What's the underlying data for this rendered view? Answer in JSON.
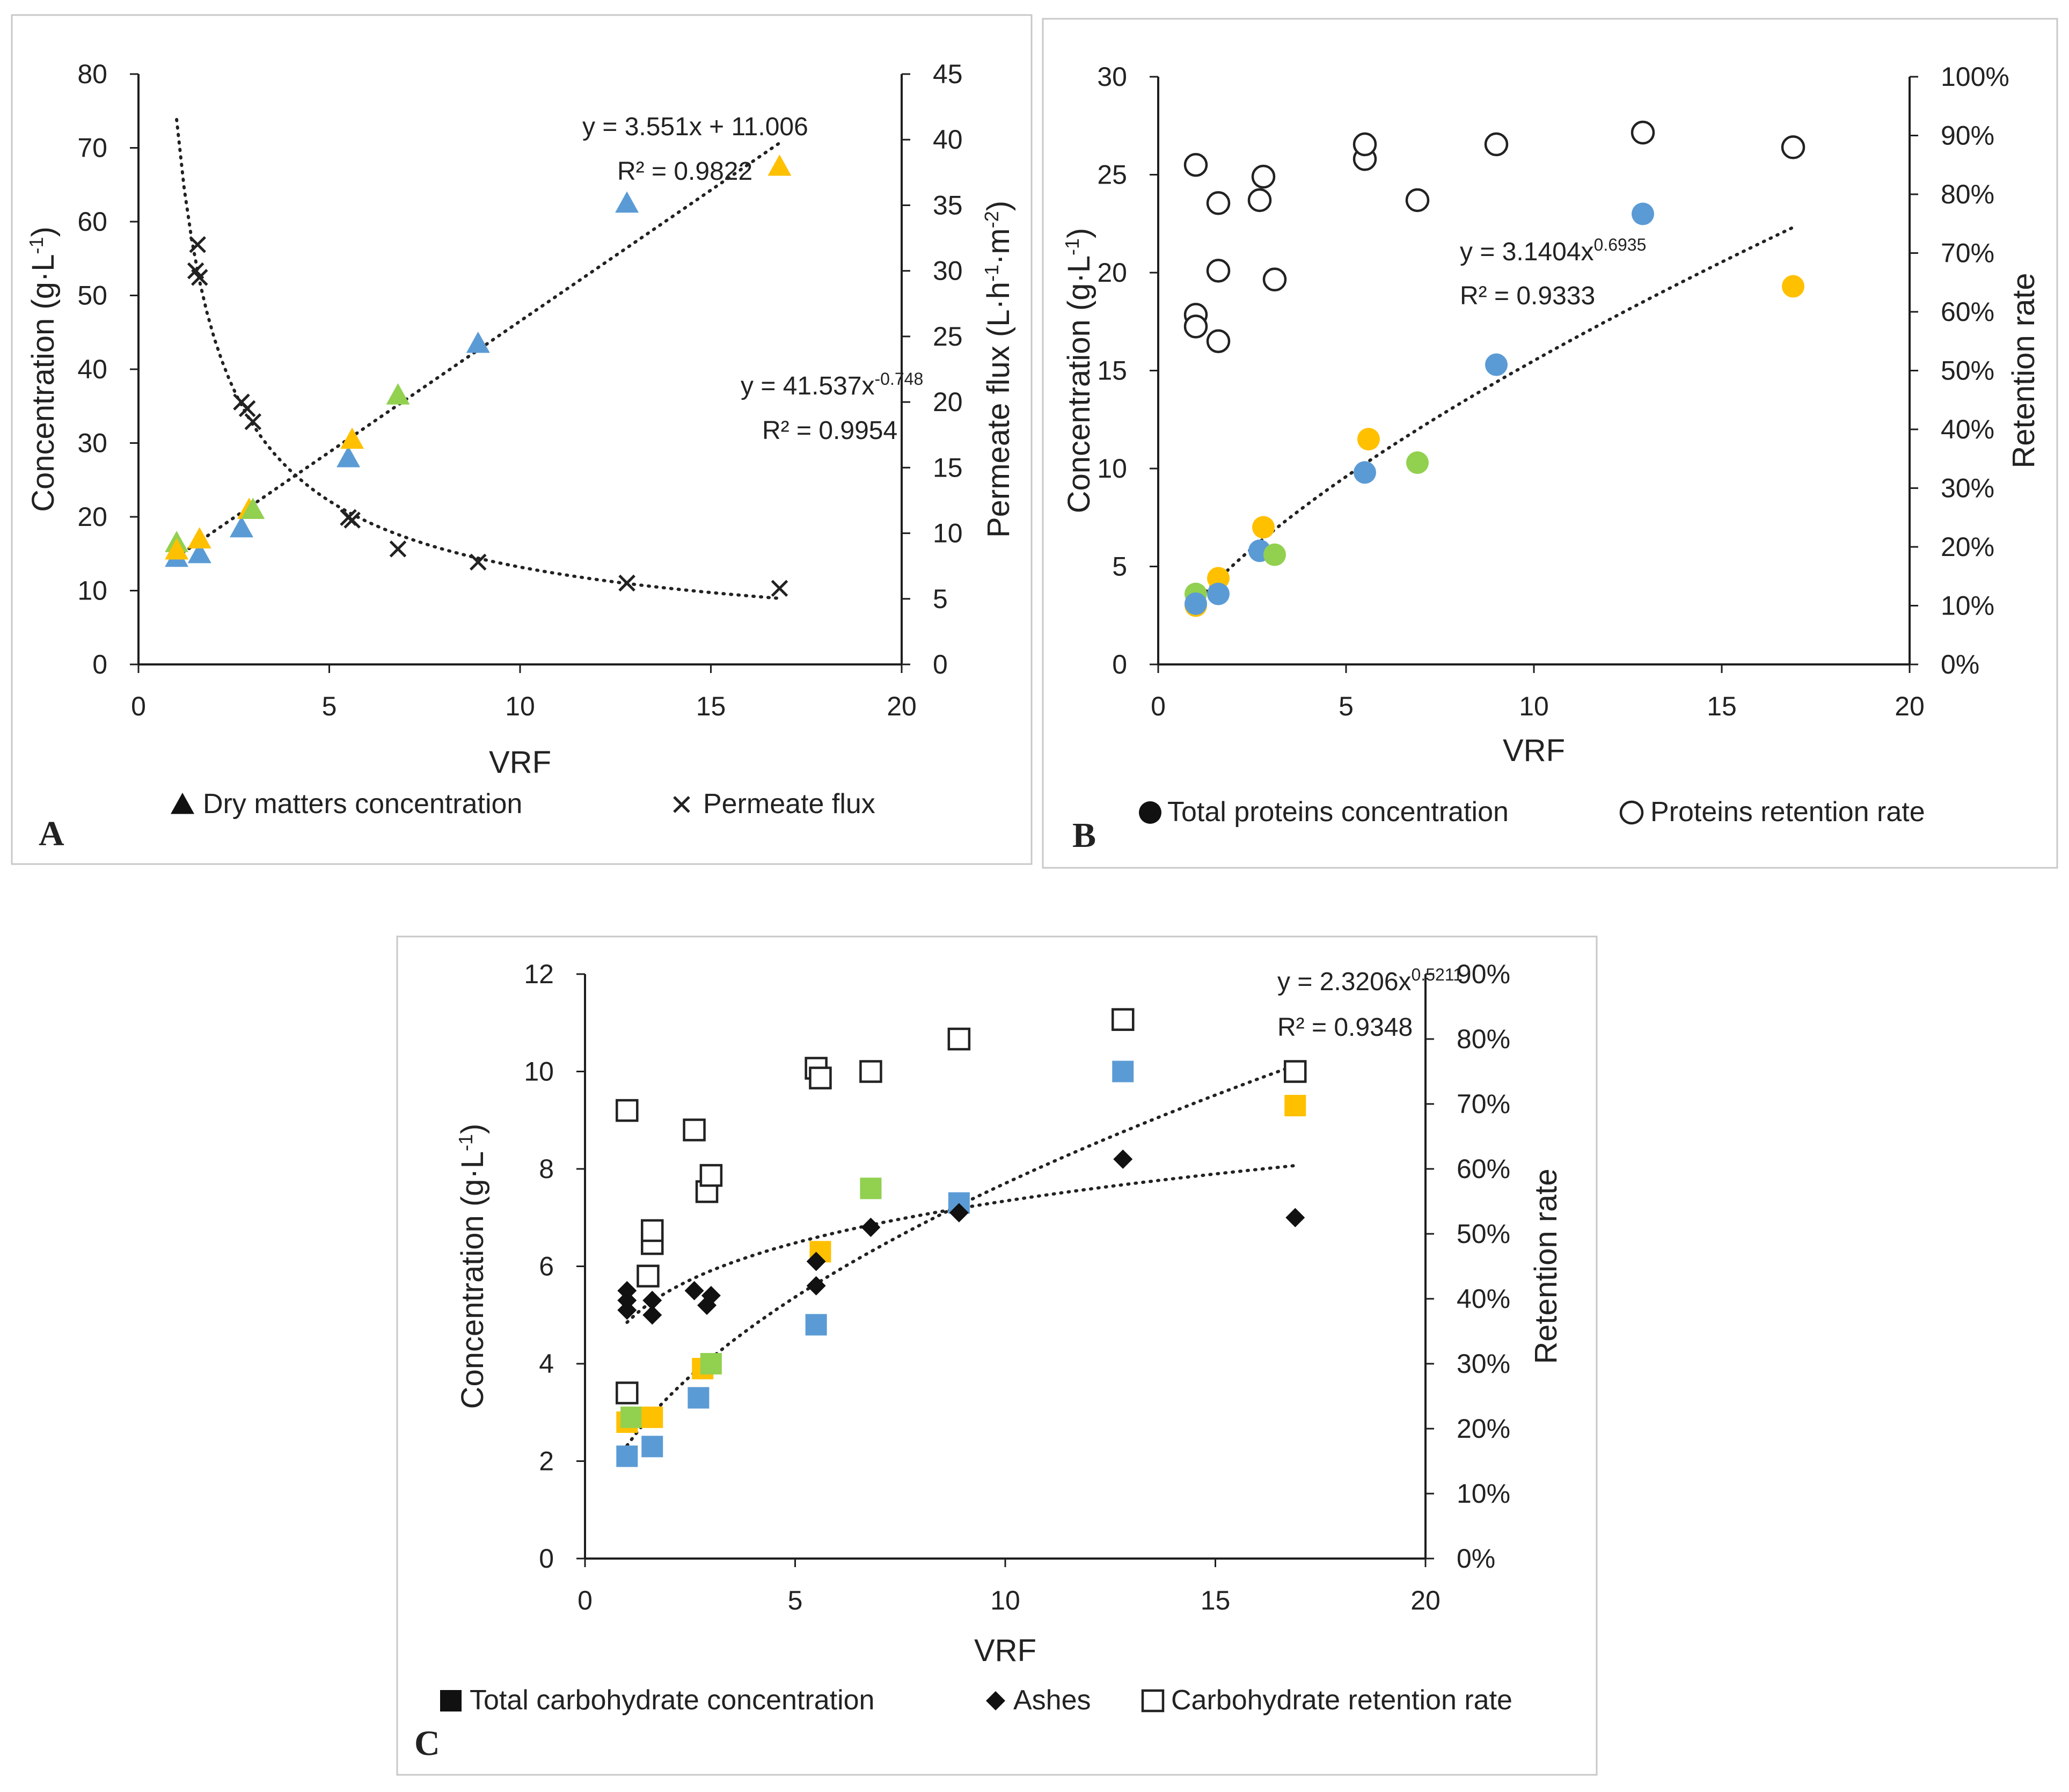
{
  "colors": {
    "blue": "#5b9bd5",
    "yellow": "#ffc000",
    "green": "#92d050",
    "black": "#111111"
  },
  "chart_data": [
    {
      "panel": "A",
      "type": "scatter",
      "xlabel": "VRF",
      "xlim": [
        0,
        20
      ],
      "xticks": [
        0,
        5,
        10,
        15,
        20
      ],
      "ylabel": "Concentration (g·L-1)",
      "ylim": [
        0,
        80
      ],
      "yticks": [
        0,
        10,
        20,
        30,
        40,
        50,
        60,
        70,
        80
      ],
      "y2label": "Permeate flux (L·h-1·m-2)",
      "y2lim": [
        0,
        45
      ],
      "y2ticks": [
        0,
        5,
        10,
        15,
        20,
        25,
        30,
        35,
        40,
        45
      ],
      "series": [
        {
          "name": "Dry matters concentration",
          "axis": "left",
          "marker": "triangle",
          "points": [
            {
              "x": 1.0,
              "y": 14.5,
              "c": "blue"
            },
            {
              "x": 1.0,
              "y": 16.5,
              "c": "green"
            },
            {
              "x": 1.0,
              "y": 15.5,
              "c": "yellow"
            },
            {
              "x": 1.6,
              "y": 15.0,
              "c": "blue"
            },
            {
              "x": 1.6,
              "y": 17.0,
              "c": "yellow"
            },
            {
              "x": 2.7,
              "y": 18.5,
              "c": "blue"
            },
            {
              "x": 2.9,
              "y": 21.0,
              "c": "yellow"
            },
            {
              "x": 3.0,
              "y": 21.0,
              "c": "green"
            },
            {
              "x": 5.5,
              "y": 28.0,
              "c": "blue"
            },
            {
              "x": 5.6,
              "y": 30.5,
              "c": "yellow"
            },
            {
              "x": 6.8,
              "y": 36.5,
              "c": "green"
            },
            {
              "x": 8.9,
              "y": 43.5,
              "c": "blue"
            },
            {
              "x": 12.8,
              "y": 62.5,
              "c": "blue"
            },
            {
              "x": 16.8,
              "y": 67.5,
              "c": "yellow"
            }
          ]
        },
        {
          "name": "Permeate flux",
          "axis": "right",
          "marker": "x",
          "points": [
            {
              "x": 1.55,
              "y": 32.0
            },
            {
              "x": 1.5,
              "y": 30.0
            },
            {
              "x": 1.6,
              "y": 29.5
            },
            {
              "x": 2.7,
              "y": 20.0
            },
            {
              "x": 2.85,
              "y": 19.5
            },
            {
              "x": 3.0,
              "y": 18.5
            },
            {
              "x": 5.5,
              "y": 11.2
            },
            {
              "x": 5.6,
              "y": 11.0
            },
            {
              "x": 6.8,
              "y": 8.8
            },
            {
              "x": 8.9,
              "y": 7.8
            },
            {
              "x": 12.8,
              "y": 6.2
            },
            {
              "x": 16.8,
              "y": 5.8
            }
          ]
        }
      ],
      "trendlines": [
        {
          "kind": "linear",
          "axis": "left",
          "a": 3.551,
          "b": 11.006,
          "x0": 1.0,
          "x1": 16.8
        },
        {
          "kind": "power",
          "axis": "right",
          "a": 41.537,
          "b": -0.748,
          "x0": 1.0,
          "x1": 16.8
        }
      ],
      "equations": [
        {
          "line1": "y = 3.551x + 11.006",
          "r2": "R² = 0.9822"
        },
        {
          "base": "y = 41.537x",
          "exp": "-0.748",
          "r2": "R² = 0.9954"
        }
      ],
      "legend": [
        {
          "marker": "triangle",
          "label": "Dry matters concentration"
        },
        {
          "marker": "x",
          "label": "Permeate flux"
        }
      ]
    },
    {
      "panel": "B",
      "type": "scatter",
      "xlabel": "VRF",
      "xlim": [
        0,
        20
      ],
      "xticks": [
        0,
        5,
        10,
        15,
        20
      ],
      "ylabel": "Concentration (g·L-1)",
      "ylim": [
        0,
        30
      ],
      "yticks": [
        0,
        5,
        10,
        15,
        20,
        25,
        30
      ],
      "y2label": "Retention rate",
      "y2lim": [
        0,
        100
      ],
      "y2ticks": [
        "0%",
        "10%",
        "20%",
        "30%",
        "40%",
        "50%",
        "60%",
        "70%",
        "80%",
        "90%",
        "100%"
      ],
      "series": [
        {
          "name": "Total proteins concentration",
          "axis": "left",
          "marker": "circle",
          "points": [
            {
              "x": 1.0,
              "y": 3.0,
              "c": "yellow"
            },
            {
              "x": 1.0,
              "y": 3.6,
              "c": "green"
            },
            {
              "x": 1.0,
              "y": 3.1,
              "c": "blue"
            },
            {
              "x": 1.6,
              "y": 4.4,
              "c": "yellow"
            },
            {
              "x": 1.6,
              "y": 3.6,
              "c": "blue"
            },
            {
              "x": 2.7,
              "y": 5.8,
              "c": "blue"
            },
            {
              "x": 2.8,
              "y": 7.0,
              "c": "yellow"
            },
            {
              "x": 3.1,
              "y": 5.6,
              "c": "green"
            },
            {
              "x": 5.5,
              "y": 9.8,
              "c": "blue"
            },
            {
              "x": 5.6,
              "y": 11.5,
              "c": "yellow"
            },
            {
              "x": 6.9,
              "y": 10.3,
              "c": "green"
            },
            {
              "x": 9.0,
              "y": 15.3,
              "c": "blue"
            },
            {
              "x": 12.9,
              "y": 23.0,
              "c": "blue"
            },
            {
              "x": 16.9,
              "y": 19.3,
              "c": "yellow"
            }
          ]
        },
        {
          "name": "Proteins retention rate",
          "axis": "right",
          "marker": "open-circle",
          "points": [
            {
              "x": 1.0,
              "y": 85.0
            },
            {
              "x": 1.0,
              "y": 59.5
            },
            {
              "x": 1.0,
              "y": 57.5
            },
            {
              "x": 1.6,
              "y": 78.5
            },
            {
              "x": 1.6,
              "y": 67.0
            },
            {
              "x": 1.6,
              "y": 55.0
            },
            {
              "x": 2.7,
              "y": 79.0
            },
            {
              "x": 2.8,
              "y": 83.0
            },
            {
              "x": 3.1,
              "y": 65.5
            },
            {
              "x": 5.5,
              "y": 86.0
            },
            {
              "x": 5.5,
              "y": 88.5
            },
            {
              "x": 6.9,
              "y": 79.0
            },
            {
              "x": 9.0,
              "y": 88.5
            },
            {
              "x": 12.9,
              "y": 90.5
            },
            {
              "x": 16.9,
              "y": 88.0
            }
          ]
        }
      ],
      "trendlines": [
        {
          "kind": "power",
          "axis": "left",
          "a": 3.1404,
          "b": 0.6935,
          "x0": 1.0,
          "x1": 16.9
        }
      ],
      "equations": [
        {
          "base": "y = 3.1404x",
          "exp": "0.6935",
          "r2": "R² = 0.9333"
        }
      ],
      "legend": [
        {
          "marker": "circle",
          "label": "Total proteins concentration"
        },
        {
          "marker": "open-circle",
          "label": "Proteins retention rate"
        }
      ]
    },
    {
      "panel": "C",
      "type": "scatter",
      "xlabel": "VRF",
      "xlim": [
        0,
        20
      ],
      "xticks": [
        0,
        5,
        10,
        15,
        20
      ],
      "ylabel": "Concentration (g·L-1)",
      "ylim": [
        0,
        12
      ],
      "yticks": [
        0,
        2,
        4,
        6,
        8,
        10,
        12
      ],
      "y2label": "Retention rate",
      "y2lim": [
        0,
        90
      ],
      "y2ticks": [
        "0%",
        "10%",
        "20%",
        "30%",
        "40%",
        "50%",
        "60%",
        "70%",
        "80%",
        "90%"
      ],
      "series": [
        {
          "name": "Total carbohydrate concentration",
          "axis": "left",
          "marker": "square",
          "points": [
            {
              "x": 1.0,
              "y": 2.1,
              "c": "blue"
            },
            {
              "x": 1.0,
              "y": 2.8,
              "c": "yellow"
            },
            {
              "x": 1.1,
              "y": 2.9,
              "c": "green"
            },
            {
              "x": 1.6,
              "y": 2.3,
              "c": "blue"
            },
            {
              "x": 1.6,
              "y": 2.9,
              "c": "yellow"
            },
            {
              "x": 2.7,
              "y": 3.3,
              "c": "blue"
            },
            {
              "x": 2.8,
              "y": 3.9,
              "c": "yellow"
            },
            {
              "x": 3.0,
              "y": 4.0,
              "c": "green"
            },
            {
              "x": 5.5,
              "y": 4.8,
              "c": "blue"
            },
            {
              "x": 5.6,
              "y": 6.3,
              "c": "yellow"
            },
            {
              "x": 6.8,
              "y": 7.6,
              "c": "green"
            },
            {
              "x": 8.9,
              "y": 7.3,
              "c": "blue"
            },
            {
              "x": 12.8,
              "y": 10.0,
              "c": "blue"
            },
            {
              "x": 16.9,
              "y": 9.3,
              "c": "yellow"
            }
          ]
        },
        {
          "name": "Ashes",
          "axis": "left",
          "marker": "diamond",
          "points": [
            {
              "x": 1.0,
              "y": 5.5
            },
            {
              "x": 1.0,
              "y": 5.3
            },
            {
              "x": 1.0,
              "y": 5.1
            },
            {
              "x": 1.6,
              "y": 5.3
            },
            {
              "x": 1.6,
              "y": 5.0
            },
            {
              "x": 2.6,
              "y": 5.5
            },
            {
              "x": 2.9,
              "y": 5.2
            },
            {
              "x": 3.0,
              "y": 5.4
            },
            {
              "x": 5.5,
              "y": 5.6
            },
            {
              "x": 5.5,
              "y": 6.1
            },
            {
              "x": 6.8,
              "y": 6.8
            },
            {
              "x": 8.9,
              "y": 7.1
            },
            {
              "x": 12.8,
              "y": 8.2
            },
            {
              "x": 16.9,
              "y": 7.0
            }
          ]
        },
        {
          "name": "Carbohydrate retention rate",
          "axis": "right",
          "marker": "open-square",
          "points": [
            {
              "x": 1.0,
              "y": 69.0
            },
            {
              "x": 1.0,
              "y": 25.5
            },
            {
              "x": 1.5,
              "y": 43.5
            },
            {
              "x": 1.6,
              "y": 48.5
            },
            {
              "x": 1.6,
              "y": 50.5
            },
            {
              "x": 2.6,
              "y": 66.0
            },
            {
              "x": 2.9,
              "y": 56.5
            },
            {
              "x": 3.0,
              "y": 59.0
            },
            {
              "x": 5.5,
              "y": 75.5
            },
            {
              "x": 5.6,
              "y": 74.0
            },
            {
              "x": 6.8,
              "y": 75.0
            },
            {
              "x": 8.9,
              "y": 80.0
            },
            {
              "x": 12.8,
              "y": 83.0
            },
            {
              "x": 16.9,
              "y": 75.0
            }
          ]
        }
      ],
      "trendlines": [
        {
          "kind": "power",
          "axis": "left",
          "a": 2.3206,
          "b": 0.5211,
          "x0": 1.0,
          "x1": 16.9
        },
        {
          "kind": "power",
          "axis": "left",
          "a": 4.85,
          "b": 0.18,
          "x0": 1.0,
          "x1": 16.9
        }
      ],
      "equations": [
        {
          "base": "y = 2.3206x",
          "exp": "0.5211",
          "r2": "R² = 0.9348"
        }
      ],
      "legend": [
        {
          "marker": "square",
          "label": "Total carbohydrate concentration"
        },
        {
          "marker": "diamond",
          "label": "Ashes"
        },
        {
          "marker": "open-square",
          "label": "Carbohydrate retention rate"
        }
      ]
    }
  ]
}
